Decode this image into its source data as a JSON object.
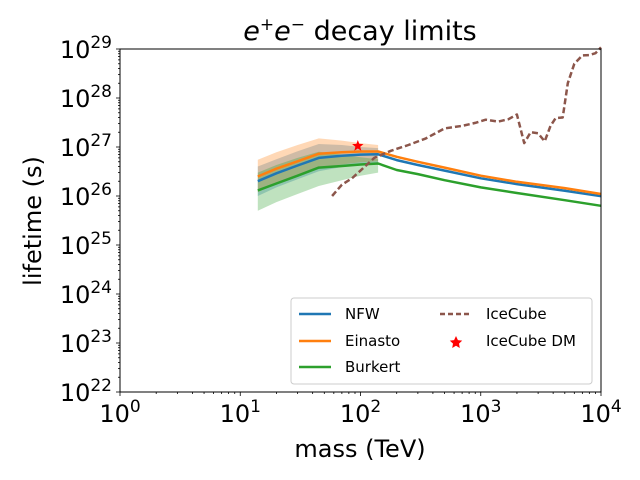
{
  "chart_data": {
    "type": "line",
    "title_base": "e",
    "title_sup1": "+",
    "title_mid": "e",
    "title_sup2": "−",
    "title_tail": " decay limits",
    "xlabel": "mass (TeV)",
    "ylabel": "lifetime (s)",
    "xscale": "log",
    "yscale": "log",
    "xlim": [
      1,
      10000
    ],
    "ylim": [
      1e+22,
      1e+29
    ],
    "x_ticks": [
      {
        "value": 1,
        "base": "10",
        "exp": "0"
      },
      {
        "value": 10,
        "base": "10",
        "exp": "1"
      },
      {
        "value": 100,
        "base": "10",
        "exp": "2"
      },
      {
        "value": 1000,
        "base": "10",
        "exp": "3"
      },
      {
        "value": 10000,
        "base": "10",
        "exp": "4"
      }
    ],
    "y_ticks": [
      {
        "value": 1e+22,
        "base": "10",
        "exp": "22"
      },
      {
        "value": 1e+23,
        "base": "10",
        "exp": "23"
      },
      {
        "value": 1e+24,
        "base": "10",
        "exp": "24"
      },
      {
        "value": 1e+25,
        "base": "10",
        "exp": "25"
      },
      {
        "value": 1e+26,
        "base": "10",
        "exp": "26"
      },
      {
        "value": 1e+27,
        "base": "10",
        "exp": "27"
      },
      {
        "value": 1e+28,
        "base": "10",
        "exp": "28"
      },
      {
        "value": 1e+29,
        "base": "10",
        "exp": "29"
      }
    ],
    "legend_placement": "lower-right",
    "series": [
      {
        "name": "NFW",
        "color": "#1f77b4",
        "style": "solid",
        "x": [
          14,
          20,
          30,
          45,
          70,
          100,
          140,
          200,
          300,
          500,
          1000,
          2000,
          5000,
          10000
        ],
        "y": [
          2e+26,
          2.9e+26,
          4.2e+26,
          6e+26,
          6.6e+26,
          7e+26,
          7.1e+26,
          5.4e+26,
          4.3e+26,
          3.3e+26,
          2.3e+26,
          1.75e+26,
          1.28e+26,
          9.9e+25
        ],
        "band_x": [
          14,
          20,
          30,
          45,
          70,
          100,
          140
        ],
        "band_lo": [
          1e+26,
          1.5e+26,
          2.2e+26,
          3.2e+26,
          3.9e+26,
          4.3e+26,
          4.5e+26
        ],
        "band_hi": [
          4e+26,
          5.6e+26,
          8.2e+26,
          1.15e+27,
          1.1e+27,
          1e+27,
          9.5e+26
        ]
      },
      {
        "name": "Einasto",
        "color": "#ff7f0e",
        "style": "solid",
        "x": [
          14,
          20,
          30,
          45,
          70,
          100,
          140,
          200,
          300,
          500,
          1000,
          2000,
          5000,
          10000
        ],
        "y": [
          2.5e+26,
          3.6e+26,
          5.1e+26,
          7.3e+26,
          7.8e+26,
          8.1e+26,
          8.1e+26,
          6.3e+26,
          5e+26,
          3.8e+26,
          2.6e+26,
          1.95e+26,
          1.45e+26,
          1.1e+26
        ],
        "band_x": [
          14,
          20,
          30,
          45,
          70,
          100,
          140
        ],
        "band_lo": [
          1.2e+26,
          1.8e+26,
          2.6e+26,
          3.8e+26,
          4.4e+26,
          4.9e+26,
          5.1e+26
        ],
        "band_hi": [
          5.5e+26,
          7.8e+26,
          1.1e+27,
          1.5e+27,
          1.35e+27,
          1.2e+27,
          1.1e+27
        ]
      },
      {
        "name": "Burkert",
        "color": "#2ca02c",
        "style": "solid",
        "x": [
          14,
          20,
          30,
          45,
          70,
          100,
          140,
          200,
          300,
          500,
          1000,
          2000,
          5000,
          10000
        ],
        "y": [
          1.3e+26,
          1.8e+26,
          2.6e+26,
          3.8e+26,
          4.1e+26,
          4.4e+26,
          4.6e+26,
          3.4e+26,
          2.8e+26,
          2.1e+26,
          1.5e+26,
          1.15e+26,
          8.2e+25,
          6.3e+25
        ],
        "band_x": [
          14,
          20,
          30,
          45,
          70,
          100,
          140
        ],
        "band_lo": [
          5e+25,
          7.5e+25,
          1.1e+26,
          1.6e+26,
          2.1e+26,
          2.6e+26,
          3e+26
        ],
        "band_hi": [
          3e+26,
          4.3e+26,
          6e+26,
          8e+26,
          7e+26,
          6.2e+26,
          5.6e+26
        ]
      },
      {
        "name": "IceCube",
        "color": "#8c564b",
        "style": "dashed",
        "x": [
          58,
          70,
          85,
          100,
          130,
          180,
          250,
          350,
          500,
          700,
          900,
          1100,
          1400,
          1700,
          2000,
          2300,
          2600,
          3000,
          3400,
          3800,
          4200,
          4800,
          5300,
          6000,
          7000,
          8000,
          9000,
          10000
        ],
        "y": [
          1e+26,
          1.7e+26,
          2.3e+26,
          3.3e+26,
          6e+26,
          8.4e+26,
          1.1e+27,
          1.5e+27,
          2.4e+27,
          2.7e+27,
          3.1e+27,
          3.6e+27,
          3.3e+27,
          3.7e+27,
          4.6e+27,
          1.2e+27,
          2e+27,
          1.9e+27,
          1.3e+27,
          2.7e+27,
          3.9e+27,
          4e+27,
          2e+28,
          5e+28,
          7.4e+28,
          7.5e+28,
          8.2e+28,
          1.08e+29
        ]
      }
    ],
    "points": [
      {
        "name": "IceCube DM",
        "color": "#ff0000",
        "marker": "star",
        "x": 95,
        "y": 1.05e+27
      }
    ]
  }
}
